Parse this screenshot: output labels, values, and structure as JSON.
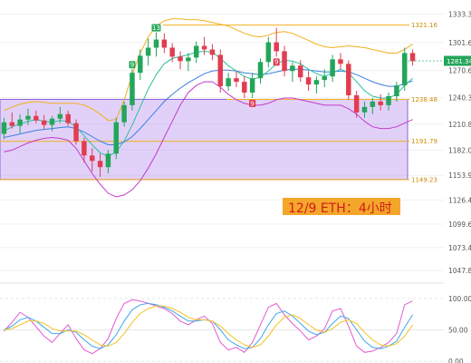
{
  "caption": "12/9 ETH：4小时",
  "chart_data": [
    {
      "type": "candlestick",
      "price_axis_ticks": [
        1333.34,
        1301.6,
        1270.62,
        1240.38,
        1210.85,
        1182.03,
        1153.9,
        1126.43,
        1099.62,
        1073.44,
        1047.89
      ],
      "ylim": [
        1040,
        1345
      ],
      "current_price": 1281.34,
      "high_marker": 1312.99,
      "levels": [
        {
          "value": 1321.16,
          "color": "#f2b01e"
        },
        {
          "value": 1238.48,
          "color": "#f2b01e"
        },
        {
          "value": 1191.79,
          "color": "#f2b01e"
        },
        {
          "value": 1149.23,
          "color": "#f2b01e"
        }
      ],
      "range_box": {
        "low": 1149.23,
        "high": 1238.48,
        "color": "#b48cf0"
      },
      "badges": [
        {
          "index": 16,
          "text": "9",
          "color": "#25a85b",
          "side": "above"
        },
        {
          "index": 19,
          "text": "13",
          "color": "#25a85b",
          "side": "above"
        },
        {
          "index": 31,
          "text": "9",
          "color": "#e03b4e",
          "side": "below"
        },
        {
          "index": 34,
          "text": "9",
          "color": "#e03b4e",
          "side": "below"
        }
      ],
      "candles": [
        [
          1200,
          1218,
          1194,
          1213
        ],
        [
          1213,
          1224,
          1206,
          1209
        ],
        [
          1209,
          1222,
          1201,
          1216
        ],
        [
          1216,
          1228,
          1210,
          1220
        ],
        [
          1220,
          1226,
          1212,
          1215
        ],
        [
          1215,
          1221,
          1205,
          1210
        ],
        [
          1210,
          1220,
          1203,
          1217
        ],
        [
          1217,
          1230,
          1212,
          1222
        ],
        [
          1222,
          1226,
          1209,
          1212
        ],
        [
          1212,
          1216,
          1188,
          1192
        ],
        [
          1192,
          1196,
          1168,
          1176
        ],
        [
          1176,
          1184,
          1158,
          1170
        ],
        [
          1170,
          1178,
          1152,
          1163
        ],
        [
          1163,
          1182,
          1156,
          1178
        ],
        [
          1178,
          1218,
          1172,
          1213
        ],
        [
          1213,
          1236,
          1208,
          1232
        ],
        [
          1232,
          1272,
          1226,
          1268
        ],
        [
          1268,
          1294,
          1260,
          1287
        ],
        [
          1287,
          1306,
          1276,
          1296
        ],
        [
          1296,
          1313,
          1286,
          1305
        ],
        [
          1305,
          1312,
          1290,
          1296
        ],
        [
          1296,
          1301,
          1280,
          1286
        ],
        [
          1286,
          1292,
          1272,
          1281
        ],
        [
          1281,
          1290,
          1270,
          1285
        ],
        [
          1285,
          1303,
          1279,
          1298
        ],
        [
          1298,
          1308,
          1288,
          1294
        ],
        [
          1294,
          1300,
          1282,
          1288
        ],
        [
          1288,
          1294,
          1246,
          1253
        ],
        [
          1253,
          1268,
          1248,
          1262
        ],
        [
          1262,
          1270,
          1252,
          1258
        ],
        [
          1258,
          1264,
          1240,
          1246
        ],
        [
          1246,
          1268,
          1240,
          1262
        ],
        [
          1262,
          1284,
          1256,
          1280
        ],
        [
          1280,
          1308,
          1274,
          1302
        ],
        [
          1302,
          1318,
          1286,
          1292
        ],
        [
          1292,
          1298,
          1264,
          1270
        ],
        [
          1270,
          1280,
          1258,
          1276
        ],
        [
          1276,
          1282,
          1258,
          1263
        ],
        [
          1263,
          1270,
          1248,
          1255
        ],
        [
          1255,
          1264,
          1245,
          1260
        ],
        [
          1260,
          1272,
          1252,
          1264
        ],
        [
          1264,
          1288,
          1258,
          1283
        ],
        [
          1283,
          1290,
          1272,
          1278
        ],
        [
          1278,
          1282,
          1238,
          1243
        ],
        [
          1243,
          1248,
          1218,
          1224
        ],
        [
          1224,
          1236,
          1218,
          1230
        ],
        [
          1230,
          1240,
          1222,
          1236
        ],
        [
          1236,
          1244,
          1226,
          1232
        ],
        [
          1232,
          1246,
          1226,
          1242
        ],
        [
          1242,
          1258,
          1236,
          1254
        ],
        [
          1254,
          1296,
          1248,
          1290
        ],
        [
          1290,
          1294,
          1276,
          1281
        ]
      ],
      "ma_fast": [
        1203,
        1208,
        1211,
        1214,
        1216,
        1214,
        1213,
        1215,
        1214,
        1208,
        1198,
        1188,
        1179,
        1175,
        1180,
        1192,
        1210,
        1230,
        1250,
        1266,
        1278,
        1284,
        1286,
        1288,
        1291,
        1292,
        1291,
        1284,
        1276,
        1270,
        1264,
        1261,
        1263,
        1270,
        1278,
        1282,
        1281,
        1278,
        1272,
        1267,
        1264,
        1268,
        1272,
        1268,
        1258,
        1248,
        1242,
        1240,
        1240,
        1244,
        1254,
        1262
      ],
      "ma_slow": [
        1196,
        1198,
        1200,
        1202,
        1204,
        1205,
        1206,
        1207,
        1208,
        1206,
        1202,
        1197,
        1192,
        1188,
        1188,
        1191,
        1197,
        1206,
        1216,
        1226,
        1236,
        1244,
        1251,
        1257,
        1262,
        1267,
        1270,
        1271,
        1271,
        1270,
        1268,
        1267,
        1266,
        1267,
        1269,
        1271,
        1272,
        1272,
        1271,
        1270,
        1269,
        1269,
        1270,
        1269,
        1266,
        1262,
        1258,
        1255,
        1253,
        1253,
        1256,
        1259
      ],
      "bb_upper": [
        1226,
        1230,
        1233,
        1235,
        1236,
        1235,
        1234,
        1234,
        1234,
        1234,
        1232,
        1228,
        1222,
        1215,
        1216,
        1238,
        1266,
        1290,
        1308,
        1320,
        1326,
        1328,
        1328,
        1327,
        1327,
        1326,
        1324,
        1322,
        1320,
        1316,
        1312,
        1309,
        1308,
        1310,
        1313,
        1314,
        1312,
        1308,
        1304,
        1300,
        1297,
        1296,
        1297,
        1298,
        1297,
        1296,
        1294,
        1292,
        1290,
        1290,
        1294,
        1300
      ],
      "bb_lower": [
        1180,
        1182,
        1186,
        1190,
        1193,
        1195,
        1196,
        1195,
        1193,
        1184,
        1170,
        1156,
        1144,
        1134,
        1130,
        1132,
        1138,
        1148,
        1162,
        1178,
        1196,
        1214,
        1232,
        1246,
        1254,
        1258,
        1258,
        1252,
        1244,
        1238,
        1234,
        1232,
        1232,
        1234,
        1238,
        1240,
        1240,
        1238,
        1236,
        1234,
        1232,
        1232,
        1232,
        1228,
        1222,
        1214,
        1208,
        1206,
        1206,
        1208,
        1212,
        1216
      ]
    },
    {
      "type": "line",
      "name_shown": "",
      "yticks": [
        100.0,
        50.0,
        0.0
      ],
      "ylim": [
        0,
        110
      ],
      "series": [
        {
          "color": "#e05cd0",
          "values": [
            48,
            62,
            78,
            70,
            55,
            40,
            30,
            44,
            58,
            36,
            18,
            12,
            20,
            36,
            68,
            92,
            98,
            96,
            92,
            88,
            84,
            76,
            64,
            58,
            66,
            72,
            60,
            30,
            18,
            22,
            14,
            30,
            58,
            86,
            92,
            74,
            60,
            48,
            34,
            40,
            52,
            80,
            84,
            56,
            24,
            14,
            16,
            22,
            30,
            44,
            90,
            96
          ]
        },
        {
          "color": "#3fa8e6",
          "values": [
            50,
            56,
            66,
            70,
            64,
            54,
            44,
            44,
            50,
            46,
            34,
            24,
            20,
            26,
            42,
            64,
            82,
            90,
            92,
            90,
            86,
            80,
            72,
            64,
            64,
            66,
            64,
            50,
            34,
            26,
            20,
            22,
            36,
            58,
            76,
            80,
            72,
            60,
            48,
            42,
            46,
            60,
            72,
            68,
            50,
            32,
            22,
            20,
            24,
            32,
            54,
            74
          ]
        },
        {
          "color": "#f2c21e",
          "values": [
            50,
            52,
            58,
            64,
            64,
            60,
            52,
            48,
            48,
            48,
            42,
            34,
            26,
            24,
            30,
            44,
            62,
            76,
            84,
            88,
            88,
            84,
            78,
            70,
            66,
            66,
            64,
            56,
            44,
            34,
            26,
            22,
            26,
            40,
            58,
            70,
            74,
            68,
            58,
            50,
            46,
            52,
            62,
            66,
            60,
            46,
            34,
            26,
            24,
            28,
            40,
            58
          ]
        }
      ]
    }
  ]
}
